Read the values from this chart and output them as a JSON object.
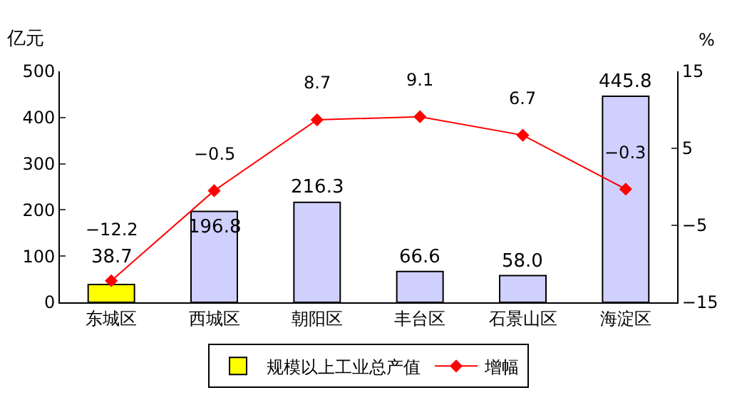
{
  "chart_data": {
    "type": "bar",
    "categories": [
      "东城区",
      "西城区",
      "朝阳区",
      "丰台区",
      "石景山区",
      "海淀区"
    ],
    "ylabel": "亿元",
    "y2label": "%",
    "series": [
      {
        "name": "规模以上工业总产值",
        "colors": [
          "#ffff00",
          "#d0d0ff",
          "#d0d0ff",
          "#d0d0ff",
          "#d0d0ff",
          "#d0d0ff"
        ],
        "values": [
          38.7,
          196.8,
          216.3,
          66.6,
          58.0,
          445.8
        ],
        "value_labels": [
          "38.7",
          "196.8",
          "216.3",
          "66.6",
          "58.0",
          "445.8"
        ]
      },
      {
        "name": "增幅",
        "type": "line",
        "axis": "y2",
        "color": "#ff0000",
        "marker": "diamond",
        "values": [
          -12.2,
          -0.5,
          8.7,
          9.1,
          6.7,
          -0.3
        ],
        "value_labels": [
          "−12.2",
          "−0.5",
          "8.7",
          "9.1",
          "6.7",
          "−0.3"
        ]
      }
    ],
    "ylim": [
      0,
      500
    ],
    "yticks": [
      0,
      100,
      200,
      300,
      400,
      500
    ],
    "y2lim": [
      -15,
      15
    ],
    "y2ticks": [
      {
        "value": -15,
        "label": "−15"
      },
      {
        "value": -5,
        "label": "−5"
      },
      5,
      15
    ],
    "grid": false,
    "legend": "bottom"
  }
}
